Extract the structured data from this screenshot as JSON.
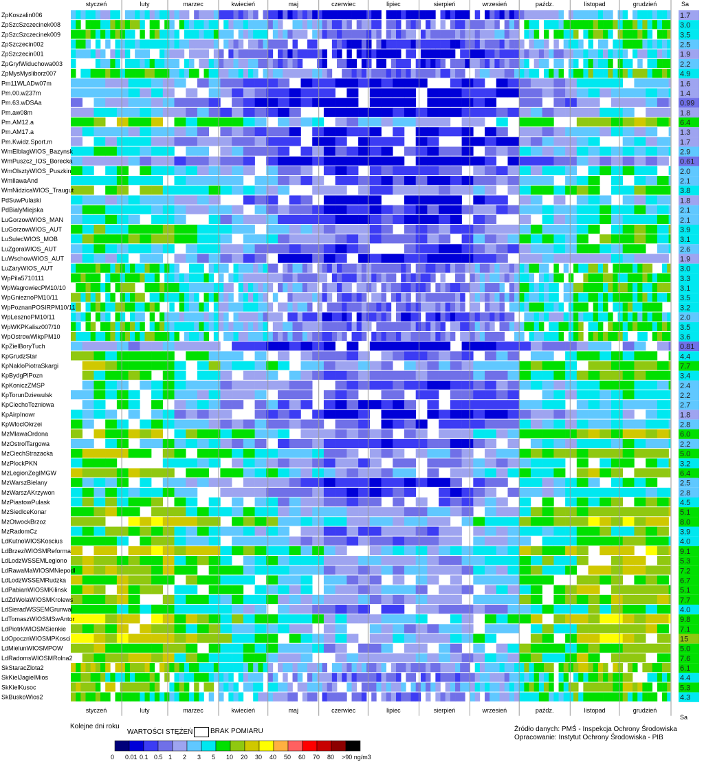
{
  "stations": [
    {
      "name": "ZpKoszalin006",
      "sa": "1.7"
    },
    {
      "name": "ZpSzcSzczecinek008",
      "sa": "3.0"
    },
    {
      "name": "ZpSzcSzczecinek009",
      "sa": "3.5"
    },
    {
      "name": "ZpSzczecin002",
      "sa": "2.5"
    },
    {
      "name": "ZpSzczecin001",
      "sa": "1.9"
    },
    {
      "name": "ZpGryfWiduchowa003",
      "sa": "2.2"
    },
    {
      "name": "ZpMysMysliborz007",
      "sa": "4.9"
    },
    {
      "name": "Pm11WLADw07m",
      "sa": "1.6"
    },
    {
      "name": "Pm.00.w237m",
      "sa": "1.4"
    },
    {
      "name": "Pm.63.wDSAa",
      "sa": "0.99"
    },
    {
      "name": "Pm.aw08m",
      "sa": "1.8"
    },
    {
      "name": "Pm.AM12.a",
      "sa": "6.4"
    },
    {
      "name": "Pm.AM17.a",
      "sa": "1.3"
    },
    {
      "name": "Pm.Kwidz.Sport.m",
      "sa": "1.7"
    },
    {
      "name": "WmElblagWIOS_Bazynsk",
      "sa": "2.9"
    },
    {
      "name": "WmPuszcz_IOS_Borecka",
      "sa": "0.61"
    },
    {
      "name": "WmOlsztyWIOS_Puszkin",
      "sa": "2.0"
    },
    {
      "name": "WmIlawaAnd",
      "sa": "2.1"
    },
    {
      "name": "WmNidzicaWIOS_Traugut",
      "sa": "3.8"
    },
    {
      "name": "PdSuwPulaski",
      "sa": "1.8"
    },
    {
      "name": "PdBialyMiejska",
      "sa": "2.1"
    },
    {
      "name": "LuGorzowWIOS_MAN",
      "sa": "2.1"
    },
    {
      "name": "LuGorzowWIOS_AUT",
      "sa": "3.9"
    },
    {
      "name": "LuSulecWIOS_MOB",
      "sa": "3.1"
    },
    {
      "name": "LuZgoraWIOS_AUT",
      "sa": "2.6"
    },
    {
      "name": "LuWschowWIOS_AUT",
      "sa": "1.9"
    },
    {
      "name": "LuZaryWIOS_AUT",
      "sa": "3.0"
    },
    {
      "name": "WpPila5710111",
      "sa": "3.3"
    },
    {
      "name": "WpWagrowiecPM10/10",
      "sa": "3.1"
    },
    {
      "name": "WpGnieznoPM10/11",
      "sa": "3.5"
    },
    {
      "name": "WpPoznanPOSIRPM10/11",
      "sa": "3.2"
    },
    {
      "name": "WpLesznoPM10/11",
      "sa": "2.0"
    },
    {
      "name": "WpWKPKalisz007/10",
      "sa": "3.5"
    },
    {
      "name": "WpOstrowWlkpPM10",
      "sa": "3.6"
    },
    {
      "name": "KpZielBoryTuch",
      "sa": "0.81"
    },
    {
      "name": "KpGrudzStar",
      "sa": "4.4"
    },
    {
      "name": "KpNakloPiotraSkargi",
      "sa": "7.7"
    },
    {
      "name": "KpBydgPlPozn",
      "sa": "3.4"
    },
    {
      "name": "KpKoniczZMSP",
      "sa": "2.4"
    },
    {
      "name": "KpTorunDziewulsk",
      "sa": "2.2"
    },
    {
      "name": "KpCiechoTezniowa",
      "sa": "2.7"
    },
    {
      "name": "KpAirpInowr",
      "sa": "1.8"
    },
    {
      "name": "KpWloclOkrzei",
      "sa": "2.8"
    },
    {
      "name": "MzMlawaOrdona",
      "sa": "6.0"
    },
    {
      "name": "MzOstrolTargowa",
      "sa": "2.2"
    },
    {
      "name": "MzCiechStrazacka",
      "sa": "5.0"
    },
    {
      "name": "MzPlockPKN",
      "sa": "3.2"
    },
    {
      "name": "MzLegionZegIMGW",
      "sa": "6.4"
    },
    {
      "name": "MzWarszBielany",
      "sa": "2.5"
    },
    {
      "name": "MzWarszAKrzywon",
      "sa": "2.8"
    },
    {
      "name": "MzPiastowPulask",
      "sa": "4.5"
    },
    {
      "name": "MzSiedlceKonar",
      "sa": "5.1"
    },
    {
      "name": "MzOtwockBrzoz",
      "sa": "8.0"
    },
    {
      "name": "MzRadomCz",
      "sa": "3.9"
    },
    {
      "name": "LdKutnoWIOSKoscius",
      "sa": "4.0"
    },
    {
      "name": "LdBrzeziWIOSMReforma",
      "sa": "9.1"
    },
    {
      "name": "LdLodzWSSEMLegiono",
      "sa": "5.3"
    },
    {
      "name": "LdRawaMaWIOSMNiepodl",
      "sa": "7.2"
    },
    {
      "name": "LdLodzWSSEMRudzka",
      "sa": "6.7"
    },
    {
      "name": "LdPabianWIOSMKilinsk",
      "sa": "5.1"
    },
    {
      "name": "LdZdWolaWIOSMKrolews",
      "sa": "7.7"
    },
    {
      "name": "LdSieradWSSEMGrunwal",
      "sa": "4.0"
    },
    {
      "name": "LdTomaszWIOSMSwAntor",
      "sa": "9.8"
    },
    {
      "name": "LdPiotrkWIOSMSienkie",
      "sa": "7.1"
    },
    {
      "name": "LdOpocznWIOSMPKosci",
      "sa": "15"
    },
    {
      "name": "LdMielunWIOSMPOW",
      "sa": "5.0"
    },
    {
      "name": "LdRadomsWIOSMRolna2",
      "sa": "7.6"
    },
    {
      "name": "SkStaracZlota2",
      "sa": "6.1"
    },
    {
      "name": "SkKielJagielMios",
      "sa": "4.4"
    },
    {
      "name": "SkKielKusoc",
      "sa": "5.3"
    },
    {
      "name": "SkBuskoWios2",
      "sa": "4.3"
    }
  ],
  "months": [
    "styczeń",
    "luty",
    "marzec",
    "kwiecień",
    "maj",
    "czerwiec",
    "lipiec",
    "sierpień",
    "wrzesień",
    "paźdz.",
    "listopad",
    "grudzień"
  ],
  "sa_header": "Sa",
  "x_caption": "Kolejne dni roku",
  "legend": {
    "title": "WARTOŚCI STĘŻEŃ",
    "missing_label": "BRAK POMIARU",
    "ticks": [
      "0",
      "0.01",
      "0.1",
      "0.5",
      "1",
      "2",
      "3",
      "5",
      "10",
      "20",
      "30",
      "40",
      "50",
      "60",
      "70",
      "80",
      ">90 ng/m3"
    ],
    "colors": [
      "#00007a",
      "#0000d8",
      "#3c3cf4",
      "#7070e8",
      "#9ea4f0",
      "#60c8ff",
      "#00e8f0",
      "#00e000",
      "#90c810",
      "#d0c800",
      "#ffff00",
      "#ffb040",
      "#ff6060",
      "#ff0000",
      "#c80000",
      "#8c0000",
      "#000000"
    ]
  },
  "source": {
    "line1": "Źródło danych: PMŚ - Inspekcja Ochrony Środowiska",
    "line2": "Opracowanie: Instytut Ochrony Środowiska - PIB"
  },
  "chart_data": {
    "type": "heatmap",
    "x": "day of year (1-365), grouped by month",
    "y": "monitoring station",
    "value_bins_ng_m3": [
      0,
      0.01,
      0.1,
      0.5,
      1,
      2,
      3,
      5,
      10,
      20,
      30,
      40,
      50,
      60,
      70,
      80,
      90
    ],
    "season_level_by_month": [
      6,
      6,
      5,
      4,
      3,
      2,
      2,
      2,
      3,
      5,
      6,
      6
    ],
    "sa_annual_mean_ng_m3": [
      1.7,
      3.0,
      3.5,
      2.5,
      1.9,
      2.2,
      4.9,
      1.6,
      1.4,
      0.99,
      1.8,
      6.4,
      1.3,
      1.7,
      2.9,
      0.61,
      2.0,
      2.1,
      3.8,
      1.8,
      2.1,
      2.1,
      3.9,
      3.1,
      2.6,
      1.9,
      3.0,
      3.3,
      3.1,
      3.5,
      3.2,
      2.0,
      3.5,
      3.6,
      0.81,
      4.4,
      7.7,
      3.4,
      2.4,
      2.2,
      2.7,
      1.8,
      2.8,
      6.0,
      2.2,
      5.0,
      3.2,
      6.4,
      2.5,
      2.8,
      4.5,
      5.1,
      8.0,
      3.9,
      4.0,
      9.1,
      5.3,
      7.2,
      6.7,
      5.1,
      7.7,
      4.0,
      9.8,
      7.1,
      15,
      5.0,
      7.6,
      6.1,
      4.4,
      5.3,
      4.3
    ]
  }
}
